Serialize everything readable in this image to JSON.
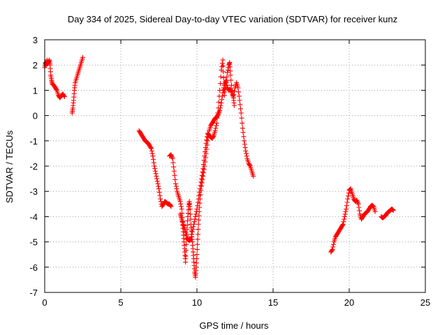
{
  "chart_data": {
    "type": "scatter",
    "title": "Day 334 of 2025, Sidereal Day-to-day VTEC variation (SDTVAR) for receiver kunz",
    "xlabel": "GPS time / hours",
    "ylabel": "SDTVAR / TECUs",
    "xlim": [
      0,
      25
    ],
    "ylim": [
      -7,
      3
    ],
    "xticks": [
      0,
      5,
      10,
      15,
      20,
      25
    ],
    "yticks": [
      -7,
      -6,
      -5,
      -4,
      -3,
      -2,
      -1,
      0,
      1,
      2,
      3
    ],
    "grid": true,
    "marker": "plus",
    "color": "#ff0000",
    "series": [
      {
        "segments": [
          [
            [
              0.0,
              1.9
            ],
            [
              0.05,
              2.1
            ],
            [
              0.1,
              2.0
            ],
            [
              0.15,
              2.2
            ],
            [
              0.2,
              2.05
            ],
            [
              0.25,
              2.1
            ],
            [
              0.3,
              2.2
            ],
            [
              0.35,
              2.0
            ],
            [
              0.4,
              1.6
            ],
            [
              0.45,
              1.4
            ],
            [
              0.5,
              1.25
            ],
            [
              0.6,
              1.2
            ],
            [
              0.7,
              1.1
            ],
            [
              0.8,
              1.0
            ],
            [
              0.9,
              0.8
            ],
            [
              1.0,
              0.7
            ],
            [
              1.1,
              0.8
            ],
            [
              1.2,
              0.85
            ],
            [
              1.3,
              0.75
            ]
          ],
          [
            [
              1.8,
              0.1
            ],
            [
              1.85,
              0.3
            ],
            [
              1.9,
              0.6
            ],
            [
              1.95,
              1.0
            ],
            [
              2.0,
              1.3
            ],
            [
              2.1,
              1.5
            ],
            [
              2.2,
              1.7
            ],
            [
              2.3,
              1.9
            ],
            [
              2.4,
              2.1
            ],
            [
              2.5,
              2.3
            ]
          ],
          [
            [
              6.2,
              -0.6
            ],
            [
              6.3,
              -0.7
            ],
            [
              6.4,
              -0.8
            ],
            [
              6.5,
              -0.9
            ],
            [
              6.6,
              -1.0
            ],
            [
              6.7,
              -1.05
            ],
            [
              6.8,
              -1.1
            ],
            [
              6.9,
              -1.2
            ],
            [
              7.0,
              -1.3
            ],
            [
              7.1,
              -1.6
            ],
            [
              7.2,
              -2.0
            ],
            [
              7.3,
              -2.3
            ],
            [
              7.4,
              -2.6
            ],
            [
              7.5,
              -2.9
            ],
            [
              7.6,
              -3.3
            ],
            [
              7.7,
              -3.6
            ],
            [
              7.8,
              -3.5
            ],
            [
              7.9,
              -3.4
            ],
            [
              8.0,
              -3.45
            ],
            [
              8.1,
              -3.5
            ],
            [
              8.2,
              -3.5
            ],
            [
              8.3,
              -3.6
            ]
          ],
          [
            [
              8.2,
              -1.6
            ],
            [
              8.3,
              -1.55
            ],
            [
              8.4,
              -1.7
            ],
            [
              8.5,
              -2.2
            ],
            [
              8.6,
              -2.7
            ],
            [
              8.7,
              -3.0
            ],
            [
              8.8,
              -3.2
            ],
            [
              8.9,
              -3.4
            ],
            [
              9.0,
              -3.7
            ],
            [
              9.05,
              -4.2
            ],
            [
              9.1,
              -4.6
            ],
            [
              9.15,
              -5.0
            ],
            [
              9.2,
              -5.4
            ],
            [
              9.25,
              -5.8
            ],
            [
              9.3,
              -5.1
            ],
            [
              9.35,
              -4.5
            ],
            [
              9.4,
              -4.0
            ],
            [
              9.45,
              -3.6
            ],
            [
              9.5,
              -3.4
            ],
            [
              9.55,
              -3.7
            ],
            [
              9.6,
              -4.3
            ],
            [
              9.65,
              -4.7
            ],
            [
              9.7,
              -5.0
            ],
            [
              9.75,
              -5.4
            ],
            [
              9.8,
              -5.8
            ],
            [
              9.85,
              -6.2
            ],
            [
              9.9,
              -6.4
            ],
            [
              9.95,
              -6.0
            ],
            [
              10.0,
              -5.5
            ],
            [
              10.05,
              -4.9
            ],
            [
              10.1,
              -4.3
            ],
            [
              10.15,
              -3.8
            ],
            [
              10.2,
              -3.3
            ],
            [
              10.3,
              -2.8
            ],
            [
              10.4,
              -2.4
            ],
            [
              10.5,
              -2.0
            ],
            [
              10.6,
              -1.5
            ],
            [
              10.7,
              -1.0
            ],
            [
              10.8,
              -0.6
            ],
            [
              10.9,
              -0.4
            ],
            [
              11.0,
              -0.3
            ],
            [
              11.1,
              -0.2
            ],
            [
              11.2,
              -0.1
            ],
            [
              11.3,
              -0.05
            ],
            [
              11.4,
              0.05
            ],
            [
              11.5,
              0.2
            ],
            [
              11.6,
              0.5
            ],
            [
              11.7,
              0.9
            ],
            [
              11.8,
              1.2
            ],
            [
              11.9,
              1.4
            ],
            [
              12.0,
              1.1
            ],
            [
              12.1,
              1.0
            ],
            [
              12.2,
              1.05
            ],
            [
              12.3,
              0.9
            ],
            [
              12.4,
              0.7
            ],
            [
              12.5,
              1.1
            ],
            [
              12.6,
              1.3
            ],
            [
              12.7,
              1.1
            ],
            [
              12.8,
              0.6
            ],
            [
              12.9,
              0.1
            ],
            [
              13.0,
              -0.5
            ],
            [
              13.1,
              -1.0
            ],
            [
              13.2,
              -1.4
            ],
            [
              13.3,
              -1.7
            ],
            [
              13.4,
              -1.9
            ],
            [
              13.5,
              -2.0
            ],
            [
              13.6,
              -2.2
            ],
            [
              13.7,
              -2.4
            ]
          ],
          [
            [
              8.9,
              -3.9
            ],
            [
              9.0,
              -4.1
            ],
            [
              9.1,
              -4.3
            ],
            [
              9.2,
              -4.5
            ],
            [
              9.3,
              -4.7
            ],
            [
              9.4,
              -4.9
            ],
            [
              9.5,
              -4.95
            ],
            [
              9.6,
              -4.9
            ],
            [
              9.7,
              -4.6
            ],
            [
              9.8,
              -4.3
            ],
            [
              9.9,
              -4.0
            ],
            [
              10.0,
              -3.7
            ],
            [
              10.1,
              -3.3
            ],
            [
              10.2,
              -2.9
            ],
            [
              10.3,
              -2.5
            ],
            [
              10.4,
              -2.1
            ],
            [
              10.5,
              -1.6
            ],
            [
              10.6,
              -1.1
            ],
            [
              10.7,
              -0.7
            ],
            [
              10.8,
              -0.8
            ],
            [
              10.9,
              -0.85
            ],
            [
              11.0,
              -0.9
            ],
            [
              11.1,
              -0.8
            ],
            [
              11.2,
              -0.6
            ],
            [
              11.3,
              -0.3
            ],
            [
              11.4,
              0.3
            ],
            [
              11.5,
              1.0
            ],
            [
              11.6,
              1.8
            ],
            [
              11.7,
              2.2
            ],
            [
              11.75,
              1.5
            ],
            [
              11.8,
              0.8
            ],
            [
              11.9,
              1.2
            ],
            [
              12.0,
              1.7
            ],
            [
              12.1,
              2.0
            ],
            [
              12.15,
              2.1
            ],
            [
              12.2,
              1.6
            ],
            [
              12.3,
              1.0
            ],
            [
              12.4,
              0.7
            ],
            [
              12.45,
              0.4
            ]
          ],
          [
            [
              18.8,
              -5.4
            ],
            [
              18.9,
              -5.3
            ],
            [
              19.0,
              -5.0
            ],
            [
              19.1,
              -4.8
            ],
            [
              19.2,
              -4.7
            ],
            [
              19.3,
              -4.6
            ],
            [
              19.4,
              -4.5
            ],
            [
              19.5,
              -4.4
            ],
            [
              19.6,
              -4.3
            ],
            [
              19.7,
              -4.0
            ],
            [
              19.8,
              -3.7
            ],
            [
              19.9,
              -3.3
            ],
            [
              20.0,
              -2.95
            ],
            [
              20.1,
              -2.9
            ],
            [
              20.2,
              -3.1
            ],
            [
              20.3,
              -3.3
            ],
            [
              20.4,
              -3.4
            ],
            [
              20.5,
              -3.35
            ],
            [
              20.6,
              -3.5
            ],
            [
              20.7,
              -3.9
            ],
            [
              20.8,
              -4.1
            ],
            [
              20.9,
              -4.0
            ],
            [
              21.0,
              -3.9
            ],
            [
              21.1,
              -3.85
            ],
            [
              21.2,
              -3.8
            ],
            [
              21.3,
              -3.7
            ],
            [
              21.4,
              -3.6
            ],
            [
              21.5,
              -3.55
            ],
            [
              21.6,
              -3.6
            ],
            [
              21.7,
              -3.8
            ]
          ],
          [
            [
              22.1,
              -4.0
            ],
            [
              22.2,
              -4.05
            ],
            [
              22.3,
              -4.0
            ],
            [
              22.4,
              -3.95
            ],
            [
              22.5,
              -3.85
            ],
            [
              22.6,
              -3.8
            ],
            [
              22.7,
              -3.75
            ],
            [
              22.8,
              -3.7
            ],
            [
              22.9,
              -3.75
            ]
          ]
        ]
      }
    ]
  }
}
